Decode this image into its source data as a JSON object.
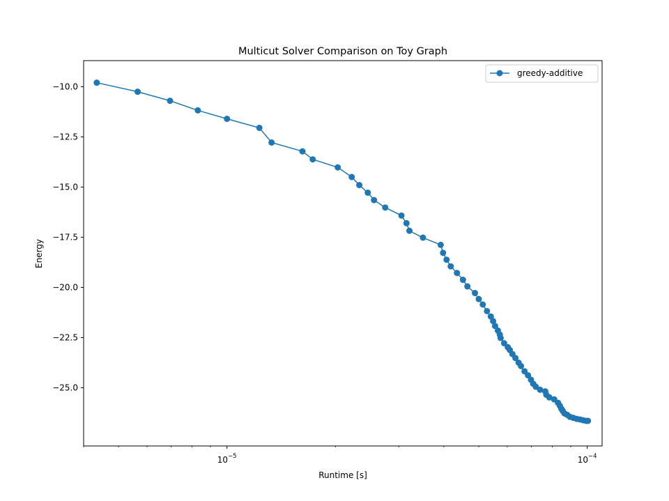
{
  "chart_data": {
    "type": "line",
    "title": "Multicut Solver Comparison on Toy Graph",
    "xlabel": "Runtime [s]",
    "ylabel": "Energy",
    "xscale": "log",
    "xlim": [
      4e-06,
      0.00011
    ],
    "ylim": [
      -27.9,
      -8.7
    ],
    "xticks": [
      1e-05,
      0.0001
    ],
    "xtick_labels": [
      {
        "base": "10",
        "exp": "−5"
      },
      {
        "base": "10",
        "exp": "−4"
      }
    ],
    "yticks": [
      -10.0,
      -12.5,
      -15.0,
      -17.5,
      -20.0,
      -22.5,
      -25.0
    ],
    "ytick_labels": [
      "−10.0",
      "−12.5",
      "−15.0",
      "−17.5",
      "−20.0",
      "−22.5",
      "−25.0"
    ],
    "grid": false,
    "legend_position": "top-right",
    "series": [
      {
        "name": "greedy-additive",
        "color": "#1f77b4",
        "marker": "circle",
        "x": [
          4.35e-06,
          5.65e-06,
          6.95e-06,
          8.3e-06,
          1e-05,
          1.23e-05,
          1.33e-05,
          1.62e-05,
          1.73e-05,
          2.03e-05,
          2.22e-05,
          2.33e-05,
          2.46e-05,
          2.56e-05,
          2.75e-05,
          3.05e-05,
          3.15e-05,
          3.21e-05,
          3.5e-05,
          3.92e-05,
          3.98e-05,
          4.07e-05,
          4.18e-05,
          4.35e-05,
          4.52e-05,
          4.65e-05,
          4.88e-05,
          5e-05,
          5.13e-05,
          5.27e-05,
          5.4e-05,
          5.48e-05,
          5.55e-05,
          5.65e-05,
          5.72e-05,
          5.75e-05,
          5.88e-05,
          6.02e-05,
          6.1e-05,
          6.2e-05,
          6.32e-05,
          6.45e-05,
          6.55e-05,
          6.7e-05,
          6.85e-05,
          6.98e-05,
          7.08e-05,
          7.2e-05,
          7.4e-05,
          7.65e-05,
          7.7e-05,
          7.85e-05,
          8.1e-05,
          8.3e-05,
          8.4e-05,
          8.48e-05,
          8.55e-05,
          8.65e-05,
          8.8e-05,
          8.95e-05,
          9.15e-05,
          9.35e-05,
          9.55e-05,
          9.75e-05,
          9.93e-05,
          0.0001005
        ],
        "y": [
          -9.8,
          -10.25,
          -10.7,
          -11.18,
          -11.6,
          -12.05,
          -12.78,
          -13.22,
          -13.62,
          -14.02,
          -14.5,
          -14.9,
          -15.28,
          -15.65,
          -16.02,
          -16.42,
          -16.8,
          -17.18,
          -17.52,
          -17.88,
          -18.28,
          -18.62,
          -18.95,
          -19.28,
          -19.62,
          -19.95,
          -20.28,
          -20.58,
          -20.85,
          -21.18,
          -21.45,
          -21.68,
          -21.92,
          -22.15,
          -22.35,
          -22.52,
          -22.78,
          -22.98,
          -23.12,
          -23.32,
          -23.52,
          -23.75,
          -23.92,
          -24.18,
          -24.38,
          -24.6,
          -24.8,
          -24.95,
          -25.1,
          -25.18,
          -25.35,
          -25.48,
          -25.58,
          -25.75,
          -25.9,
          -26.05,
          -26.15,
          -26.28,
          -26.35,
          -26.45,
          -26.5,
          -26.55,
          -26.58,
          -26.62,
          -26.65,
          -26.65
        ]
      }
    ]
  }
}
